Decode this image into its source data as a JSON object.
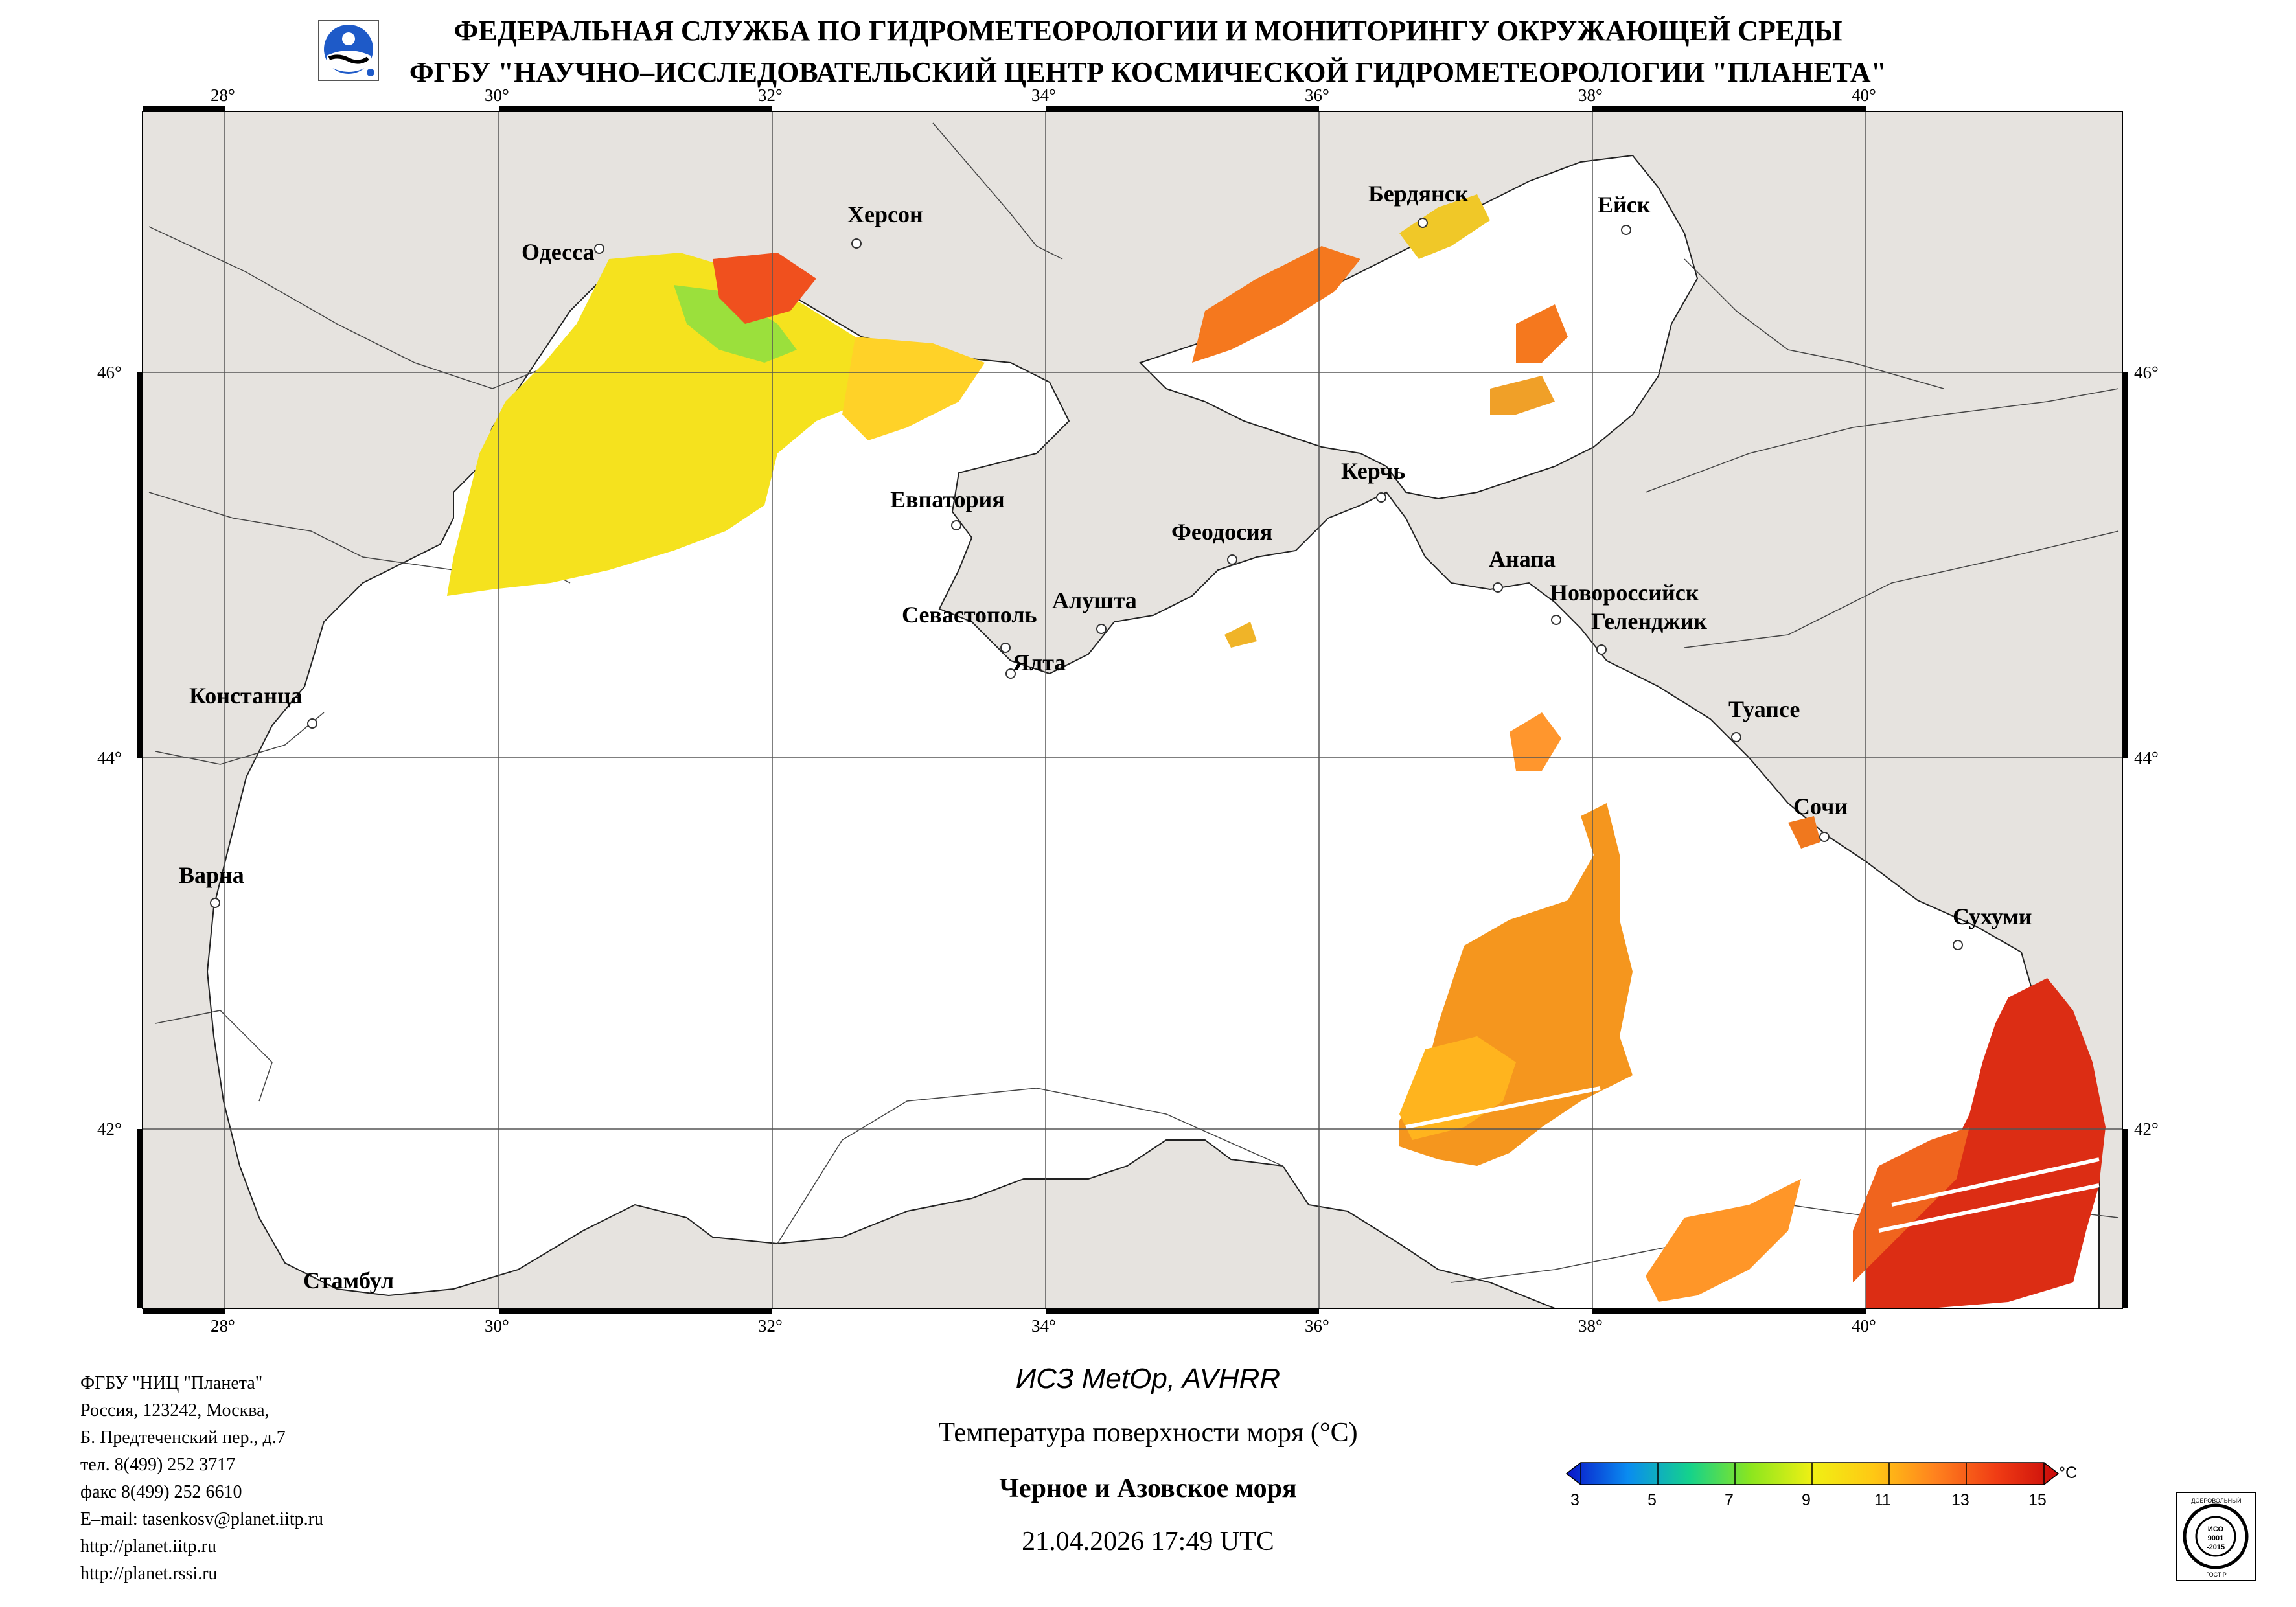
{
  "header": {
    "line1": "ФЕДЕРАЛЬНАЯ СЛУЖБА ПО ГИДРОМЕТЕОРОЛОГИИ И МОНИТОРИНГУ ОКРУЖАЮЩЕЙ СРЕДЫ",
    "line2": "ФГБУ \"НАУЧНО–ИССЛЕДОВАТЕЛЬСКИЙ ЦЕНТР КОСМИЧЕСКОЙ ГИДРОМЕТЕОРОЛОГИИ \"ПЛАНЕТА\""
  },
  "logos": {
    "org": "planeta-logo-icon",
    "iso": "iso-certificate-stamp-icon",
    "iso_text": [
      "ДОБРОВОЛЬНЫЙ",
      "ИСО",
      "9001",
      "-2015",
      "ГОСТ Р"
    ]
  },
  "map": {
    "lon_labels": [
      "28°",
      "30°",
      "32°",
      "34°",
      "36°",
      "38°",
      "40°"
    ],
    "lat_labels": [
      "46°",
      "44°",
      "42°"
    ],
    "cities": [
      {
        "name": "Одесса"
      },
      {
        "name": "Херсон"
      },
      {
        "name": "Бердянск"
      },
      {
        "name": "Ейск"
      },
      {
        "name": "Евпатория"
      },
      {
        "name": "Керчь"
      },
      {
        "name": "Феодосия"
      },
      {
        "name": "Анапа"
      },
      {
        "name": "Новороссийск"
      },
      {
        "name": "Геленджик"
      },
      {
        "name": "Севастополь"
      },
      {
        "name": "Алушта"
      },
      {
        "name": "Ялта"
      },
      {
        "name": "Констанца"
      },
      {
        "name": "Туапсе"
      },
      {
        "name": "Сочи"
      },
      {
        "name": "Варна"
      },
      {
        "name": "Сухуми"
      },
      {
        "name": "Стамбул"
      }
    ]
  },
  "info": {
    "org": "ФГБУ \"НИЦ \"Планета\"",
    "address1": "Россия, 123242, Москва,",
    "address2": "Б. Предтеченский пер., д.7",
    "tel": "тел. 8(499) 252 3717",
    "fax": "факс 8(499) 252 6610",
    "email": "E–mail: tasenkosv@planet.iitp.ru",
    "url1": "http://planet.iitp.ru",
    "url2": "http://planet.rssi.ru"
  },
  "caption": {
    "satellite": "ИСЗ MetOp, AVHRR",
    "product": "Температура поверхности моря (°С)",
    "region": "Черное и Азовское моря",
    "datetime": "21.04.2026 17:49 UTC"
  },
  "colorbar": {
    "ticks": [
      "3",
      "5",
      "7",
      "9",
      "11",
      "13",
      "15"
    ],
    "unit": "°C",
    "colors": [
      "#0a14c8",
      "#0a8cf0",
      "#14d28c",
      "#8ce61e",
      "#f0f014",
      "#ffc814",
      "#ff821e",
      "#f03c14",
      "#c80a0a"
    ]
  }
}
